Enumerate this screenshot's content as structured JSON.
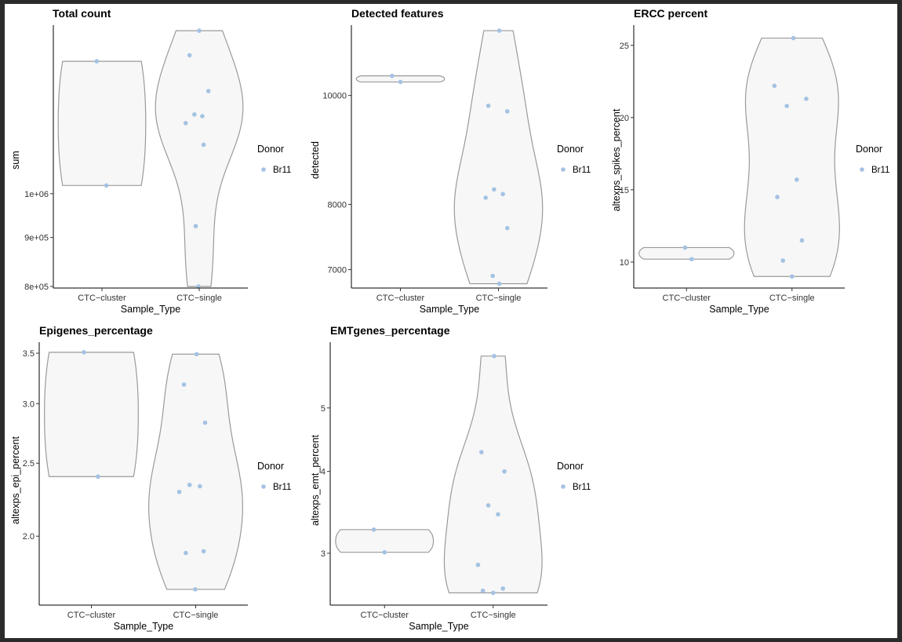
{
  "colors": {
    "point": "#a4c2e3",
    "violin_stroke": "#9a9a9a",
    "violin_fill": "#f7f7f7",
    "axis": "#000000"
  },
  "chart_data": [
    {
      "type": "violin",
      "title": "Total count",
      "xlabel": "Sample_Type",
      "ylabel": "sum",
      "scale": "log10",
      "ylim": [
        797000,
        1500000
      ],
      "categories": [
        "CTC−cluster",
        "CTC−single"
      ],
      "yticks": [
        800000,
        900000,
        1000000
      ],
      "ytick_labels": [
        "8e+05",
        "9e+05",
        "1e+06"
      ],
      "points": [
        {
          "cat": 0,
          "jitter": -0.12,
          "y": 1375000
        },
        {
          "cat": 0,
          "jitter": 0.1,
          "y": 1020000
        },
        {
          "cat": 1,
          "jitter": 0.0,
          "y": 1480000
        },
        {
          "cat": 1,
          "jitter": -0.22,
          "y": 1395000
        },
        {
          "cat": 1,
          "jitter": 0.21,
          "y": 1280000
        },
        {
          "cat": 1,
          "jitter": -0.11,
          "y": 1210000
        },
        {
          "cat": 1,
          "jitter": 0.07,
          "y": 1205000
        },
        {
          "cat": 1,
          "jitter": -0.31,
          "y": 1185000
        },
        {
          "cat": 1,
          "jitter": 0.1,
          "y": 1125000
        },
        {
          "cat": 1,
          "jitter": -0.08,
          "y": 925000
        },
        {
          "cat": 1,
          "jitter": -0.02,
          "y": 800000
        }
      ],
      "legend": {
        "title": "Donor",
        "labels": [
          "Br11"
        ]
      }
    },
    {
      "type": "violin",
      "title": "Detected features",
      "xlabel": "Sample_Type",
      "ylabel": "detected",
      "scale": "log10",
      "ylim": [
        6740,
        11550
      ],
      "categories": [
        "CTC−cluster",
        "CTC−single"
      ],
      "yticks": [
        7000,
        8000,
        10000
      ],
      "ytick_labels": [
        "7000",
        "8000",
        "10000"
      ],
      "points": [
        {
          "cat": 0,
          "jitter": -0.19,
          "y": 10410
        },
        {
          "cat": 0,
          "jitter": 0.0,
          "y": 10280
        },
        {
          "cat": 1,
          "jitter": 0.02,
          "y": 11420
        },
        {
          "cat": 1,
          "jitter": -0.23,
          "y": 9790
        },
        {
          "cat": 1,
          "jitter": 0.2,
          "y": 9680
        },
        {
          "cat": 1,
          "jitter": -0.1,
          "y": 8250
        },
        {
          "cat": 1,
          "jitter": -0.29,
          "y": 8110
        },
        {
          "cat": 1,
          "jitter": 0.1,
          "y": 8170
        },
        {
          "cat": 1,
          "jitter": 0.2,
          "y": 7620
        },
        {
          "cat": 1,
          "jitter": -0.13,
          "y": 6910
        },
        {
          "cat": 1,
          "jitter": 0.02,
          "y": 6800
        }
      ],
      "legend": {
        "title": "Donor",
        "labels": [
          "Br11"
        ]
      }
    },
    {
      "type": "violin",
      "title": "ERCC percent",
      "xlabel": "Sample_Type",
      "ylabel": "altexps_spikes_percent",
      "scale": "linear",
      "ylim": [
        8.2,
        26.4
      ],
      "categories": [
        "CTC−cluster",
        "CTC−single"
      ],
      "yticks": [
        10,
        15,
        20,
        25
      ],
      "ytick_labels": [
        "10",
        "15",
        "20",
        "25"
      ],
      "points": [
        {
          "cat": 0,
          "jitter": -0.03,
          "y": 11.0
        },
        {
          "cat": 0,
          "jitter": 0.11,
          "y": 10.2
        },
        {
          "cat": 1,
          "jitter": 0.03,
          "y": 25.5
        },
        {
          "cat": 1,
          "jitter": -0.37,
          "y": 22.2
        },
        {
          "cat": 1,
          "jitter": 0.3,
          "y": 21.3
        },
        {
          "cat": 1,
          "jitter": -0.11,
          "y": 20.8
        },
        {
          "cat": 1,
          "jitter": 0.1,
          "y": 15.7
        },
        {
          "cat": 1,
          "jitter": -0.31,
          "y": 14.5
        },
        {
          "cat": 1,
          "jitter": 0.21,
          "y": 11.5
        },
        {
          "cat": 1,
          "jitter": -0.19,
          "y": 10.1
        },
        {
          "cat": 1,
          "jitter": 0.0,
          "y": 9.0
        }
      ],
      "legend": {
        "title": "Donor",
        "labels": [
          "Br11"
        ]
      }
    },
    {
      "type": "violin",
      "title": "Epigenes_percentage",
      "xlabel": "Sample_Type",
      "ylabel": "altexps_epi_percent",
      "scale": "log10",
      "ylim": [
        1.62,
        3.62
      ],
      "categories": [
        "CTC−cluster",
        "CTC−single"
      ],
      "yticks": [
        2.0,
        2.5,
        3.0,
        3.5
      ],
      "ytick_labels": [
        "2.0",
        "2.5",
        "3.0",
        "3.5"
      ],
      "points": [
        {
          "cat": 0,
          "jitter": -0.16,
          "y": 3.51
        },
        {
          "cat": 0,
          "jitter": 0.14,
          "y": 2.4
        },
        {
          "cat": 1,
          "jitter": 0.02,
          "y": 3.49
        },
        {
          "cat": 1,
          "jitter": -0.25,
          "y": 3.18
        },
        {
          "cat": 1,
          "jitter": 0.2,
          "y": 2.83
        },
        {
          "cat": 1,
          "jitter": -0.13,
          "y": 2.34
        },
        {
          "cat": 1,
          "jitter": 0.09,
          "y": 2.33
        },
        {
          "cat": 1,
          "jitter": -0.35,
          "y": 2.29
        },
        {
          "cat": 1,
          "jitter": 0.17,
          "y": 1.91
        },
        {
          "cat": 1,
          "jitter": -0.21,
          "y": 1.9
        },
        {
          "cat": 1,
          "jitter": -0.01,
          "y": 1.7
        }
      ],
      "legend": {
        "title": "Donor",
        "labels": [
          "Br11"
        ]
      }
    },
    {
      "type": "violin",
      "title": "EMTgenes_percentage",
      "xlabel": "Sample_Type",
      "ylabel": "altexps_emt_percent",
      "scale": "log10",
      "ylim": [
        2.5,
        6.3
      ],
      "categories": [
        "CTC−cluster",
        "CTC−single"
      ],
      "yticks": [
        3,
        4,
        5
      ],
      "ytick_labels": [
        "3",
        "4",
        "5"
      ],
      "points": [
        {
          "cat": 0,
          "jitter": -0.22,
          "y": 3.26
        },
        {
          "cat": 0,
          "jitter": 0.0,
          "y": 3.01
        },
        {
          "cat": 1,
          "jitter": 0.02,
          "y": 6.0
        },
        {
          "cat": 1,
          "jitter": -0.24,
          "y": 4.28
        },
        {
          "cat": 1,
          "jitter": 0.23,
          "y": 4.0
        },
        {
          "cat": 1,
          "jitter": -0.1,
          "y": 3.55
        },
        {
          "cat": 1,
          "jitter": 0.1,
          "y": 3.44
        },
        {
          "cat": 1,
          "jitter": -0.31,
          "y": 2.88
        },
        {
          "cat": 1,
          "jitter": 0.2,
          "y": 2.65
        },
        {
          "cat": 1,
          "jitter": -0.21,
          "y": 2.63
        },
        {
          "cat": 1,
          "jitter": 0.0,
          "y": 2.61
        }
      ],
      "legend": {
        "title": "Donor",
        "labels": [
          "Br11"
        ]
      }
    }
  ]
}
